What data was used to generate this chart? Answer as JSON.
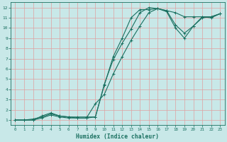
{
  "xlabel": "Humidex (Indice chaleur)",
  "background_color": "#c8e8e8",
  "grid_color": "#e0a0a0",
  "line_color": "#1a7060",
  "xlim": [
    -0.5,
    23.5
  ],
  "ylim": [
    0.5,
    12.5
  ],
  "xticks": [
    0,
    1,
    2,
    3,
    4,
    5,
    6,
    7,
    8,
    9,
    10,
    11,
    12,
    13,
    14,
    15,
    16,
    17,
    18,
    19,
    20,
    21,
    22,
    23
  ],
  "yticks": [
    1,
    2,
    3,
    4,
    5,
    6,
    7,
    8,
    9,
    10,
    11,
    12
  ],
  "line1_x": [
    0,
    1,
    2,
    3,
    4,
    5,
    6,
    7,
    8,
    9,
    10,
    11,
    12,
    13,
    14,
    15,
    16,
    17,
    18,
    19,
    20,
    21,
    22,
    23
  ],
  "line1_y": [
    1,
    1,
    1,
    1.2,
    1.5,
    1.3,
    1.2,
    1.2,
    1.2,
    1.3,
    4.4,
    7.2,
    9.0,
    11.0,
    11.8,
    11.8,
    11.9,
    11.7,
    11.5,
    11.1,
    11.1,
    11.1,
    11.0,
    11.4
  ],
  "line2_x": [
    0,
    1,
    2,
    3,
    4,
    5,
    6,
    7,
    8,
    9,
    10,
    11,
    12,
    13,
    14,
    15,
    16,
    17,
    18,
    19,
    20,
    21,
    22,
    23
  ],
  "line2_y": [
    1,
    1,
    1.1,
    1.3,
    1.6,
    1.4,
    1.3,
    1.3,
    1.3,
    1.3,
    4.5,
    6.9,
    8.5,
    9.9,
    11.5,
    12.0,
    11.9,
    11.7,
    10.3,
    9.5,
    10.2,
    11.1,
    11.1,
    11.4
  ],
  "line3_x": [
    0,
    1,
    2,
    3,
    4,
    5,
    6,
    7,
    8,
    9,
    10,
    11,
    12,
    13,
    14,
    15,
    16,
    17,
    18,
    19,
    20,
    21,
    22,
    23
  ],
  "line3_y": [
    1,
    1,
    1,
    1.4,
    1.7,
    1.4,
    1.3,
    1.2,
    1.2,
    2.6,
    3.5,
    5.5,
    7.2,
    8.8,
    10.2,
    11.5,
    11.9,
    11.6,
    10.0,
    9.0,
    10.2,
    11.0,
    11.1,
    11.4
  ]
}
